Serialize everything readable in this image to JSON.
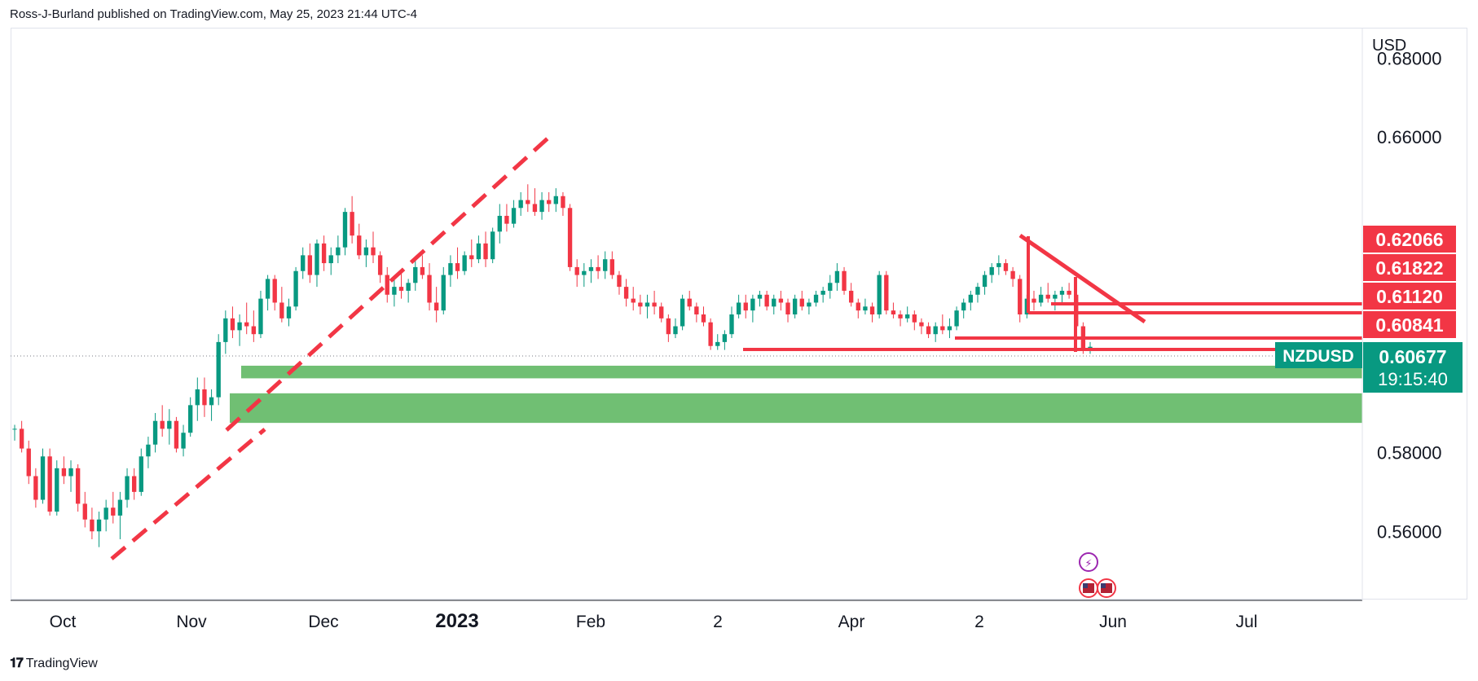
{
  "header": {
    "published_by": "Ross-J-Burland published on TradingView.com, May 25, 2023 21:44 UTC-4"
  },
  "branding": {
    "logo_icon": "tradingview-logo-icon",
    "label": "TradingView"
  },
  "chart_data": {
    "type": "candlestick",
    "symbol": "NZDUSD",
    "currency_label": "USD",
    "price_axis": {
      "range": [
        0.5425,
        0.6875
      ],
      "ticks": [
        "0.68000",
        "0.66000",
        "0.58000",
        "0.56000"
      ]
    },
    "time_axis": {
      "ticks": [
        {
          "label": "Oct",
          "bold": false
        },
        {
          "label": "Nov",
          "bold": false
        },
        {
          "label": "Dec",
          "bold": false
        },
        {
          "label": "2023",
          "bold": true
        },
        {
          "label": "Feb",
          "bold": false
        },
        {
          "label": "2",
          "bold": false
        },
        {
          "label": "Apr",
          "bold": false
        },
        {
          "label": "2",
          "bold": false
        },
        {
          "label": "Jun",
          "bold": false
        },
        {
          "label": "Jul",
          "bold": false
        }
      ]
    },
    "price_labels": [
      {
        "text": "0.62066",
        "value": 0.62066,
        "color": "#f23645"
      },
      {
        "text": "0.61822",
        "value": 0.61822,
        "color": "#f23645"
      },
      {
        "text": "0.61120",
        "value": 0.6112,
        "color": "#f23645"
      },
      {
        "text": "0.60841",
        "value": 0.60841,
        "color": "#f23645"
      }
    ],
    "last_price": {
      "text": "0.60677",
      "value": 0.60677,
      "color": "#089981",
      "symbol_tag": "NZDUSD",
      "countdown": "19:15:40"
    },
    "support_zones": [
      {
        "top": 0.602,
        "bottom": 0.5988,
        "color": "#4caf50"
      },
      {
        "top": 0.595,
        "bottom": 0.5875,
        "color": "#4caf50"
      }
    ],
    "colors": {
      "up": "#089981",
      "down": "#f23645",
      "zone": "#4caf50",
      "lines": "#f23645"
    },
    "candles": [
      [
        0.586,
        0.587,
        0.583,
        0.586
      ],
      [
        0.586,
        0.588,
        0.58,
        0.581
      ],
      [
        0.581,
        0.583,
        0.572,
        0.574
      ],
      [
        0.574,
        0.576,
        0.566,
        0.568
      ],
      [
        0.568,
        0.581,
        0.567,
        0.579
      ],
      [
        0.579,
        0.581,
        0.564,
        0.565
      ],
      [
        0.565,
        0.578,
        0.564,
        0.576
      ],
      [
        0.576,
        0.579,
        0.572,
        0.574
      ],
      [
        0.574,
        0.578,
        0.57,
        0.576
      ],
      [
        0.576,
        0.577,
        0.565,
        0.567
      ],
      [
        0.567,
        0.57,
        0.561,
        0.563
      ],
      [
        0.563,
        0.566,
        0.558,
        0.56
      ],
      [
        0.56,
        0.565,
        0.556,
        0.563
      ],
      [
        0.563,
        0.568,
        0.56,
        0.566
      ],
      [
        0.566,
        0.57,
        0.562,
        0.564
      ],
      [
        0.564,
        0.57,
        0.558,
        0.568
      ],
      [
        0.568,
        0.576,
        0.566,
        0.574
      ],
      [
        0.574,
        0.576,
        0.568,
        0.57
      ],
      [
        0.57,
        0.581,
        0.569,
        0.579
      ],
      [
        0.579,
        0.584,
        0.576,
        0.582
      ],
      [
        0.582,
        0.59,
        0.58,
        0.588
      ],
      [
        0.588,
        0.592,
        0.584,
        0.586
      ],
      [
        0.586,
        0.591,
        0.582,
        0.588
      ],
      [
        0.588,
        0.589,
        0.58,
        0.581
      ],
      [
        0.581,
        0.587,
        0.579,
        0.585
      ],
      [
        0.585,
        0.594,
        0.584,
        0.592
      ],
      [
        0.592,
        0.599,
        0.588,
        0.596
      ],
      [
        0.596,
        0.599,
        0.589,
        0.592
      ],
      [
        0.592,
        0.596,
        0.588,
        0.594
      ],
      [
        0.594,
        0.61,
        0.592,
        0.608
      ],
      [
        0.608,
        0.616,
        0.605,
        0.614
      ],
      [
        0.614,
        0.617,
        0.609,
        0.611
      ],
      [
        0.611,
        0.615,
        0.607,
        0.613
      ],
      [
        0.613,
        0.618,
        0.61,
        0.612
      ],
      [
        0.612,
        0.616,
        0.608,
        0.61
      ],
      [
        0.61,
        0.621,
        0.609,
        0.619
      ],
      [
        0.619,
        0.625,
        0.616,
        0.624
      ],
      [
        0.624,
        0.625,
        0.616,
        0.618
      ],
      [
        0.618,
        0.622,
        0.613,
        0.614
      ],
      [
        0.614,
        0.619,
        0.612,
        0.617
      ],
      [
        0.617,
        0.627,
        0.616,
        0.626
      ],
      [
        0.626,
        0.632,
        0.624,
        0.63
      ],
      [
        0.63,
        0.633,
        0.623,
        0.625
      ],
      [
        0.625,
        0.634,
        0.622,
        0.633
      ],
      [
        0.633,
        0.635,
        0.626,
        0.628
      ],
      [
        0.628,
        0.632,
        0.625,
        0.63
      ],
      [
        0.63,
        0.635,
        0.628,
        0.632
      ],
      [
        0.632,
        0.642,
        0.63,
        0.641
      ],
      [
        0.641,
        0.645,
        0.633,
        0.635
      ],
      [
        0.635,
        0.638,
        0.629,
        0.63
      ],
      [
        0.63,
        0.634,
        0.627,
        0.632
      ],
      [
        0.632,
        0.636,
        0.628,
        0.63
      ],
      [
        0.63,
        0.631,
        0.623,
        0.625
      ],
      [
        0.625,
        0.627,
        0.618,
        0.62
      ],
      [
        0.62,
        0.624,
        0.617,
        0.622
      ],
      [
        0.622,
        0.626,
        0.619,
        0.621
      ],
      [
        0.621,
        0.624,
        0.618,
        0.623
      ],
      [
        0.623,
        0.629,
        0.621,
        0.627
      ],
      [
        0.627,
        0.63,
        0.624,
        0.625
      ],
      [
        0.625,
        0.628,
        0.616,
        0.618
      ],
      [
        0.618,
        0.622,
        0.613,
        0.616
      ],
      [
        0.616,
        0.627,
        0.615,
        0.625
      ],
      [
        0.625,
        0.63,
        0.622,
        0.628
      ],
      [
        0.628,
        0.632,
        0.624,
        0.626
      ],
      [
        0.626,
        0.631,
        0.625,
        0.63
      ],
      [
        0.63,
        0.634,
        0.627,
        0.629
      ],
      [
        0.629,
        0.635,
        0.628,
        0.633
      ],
      [
        0.633,
        0.636,
        0.627,
        0.629
      ],
      [
        0.629,
        0.637,
        0.628,
        0.636
      ],
      [
        0.636,
        0.643,
        0.633,
        0.64
      ],
      [
        0.64,
        0.643,
        0.636,
        0.638
      ],
      [
        0.638,
        0.644,
        0.637,
        0.642
      ],
      [
        0.642,
        0.646,
        0.64,
        0.644
      ],
      [
        0.644,
        0.648,
        0.641,
        0.643
      ],
      [
        0.643,
        0.647,
        0.64,
        0.641
      ],
      [
        0.641,
        0.646,
        0.639,
        0.644
      ],
      [
        0.644,
        0.646,
        0.641,
        0.643
      ],
      [
        0.643,
        0.647,
        0.641,
        0.645
      ],
      [
        0.645,
        0.646,
        0.64,
        0.642
      ],
      [
        0.642,
        0.643,
        0.626,
        0.627
      ],
      [
        0.627,
        0.629,
        0.622,
        0.625
      ],
      [
        0.625,
        0.628,
        0.622,
        0.626
      ],
      [
        0.626,
        0.629,
        0.623,
        0.627
      ],
      [
        0.627,
        0.63,
        0.624,
        0.626
      ],
      [
        0.626,
        0.631,
        0.624,
        0.629
      ],
      [
        0.629,
        0.631,
        0.624,
        0.625
      ],
      [
        0.625,
        0.626,
        0.62,
        0.622
      ],
      [
        0.622,
        0.624,
        0.617,
        0.619
      ],
      [
        0.619,
        0.622,
        0.616,
        0.618
      ],
      [
        0.618,
        0.62,
        0.615,
        0.617
      ],
      [
        0.617,
        0.62,
        0.614,
        0.618
      ],
      [
        0.618,
        0.621,
        0.615,
        0.617
      ],
      [
        0.617,
        0.618,
        0.613,
        0.614
      ],
      [
        0.614,
        0.615,
        0.608,
        0.61
      ],
      [
        0.61,
        0.614,
        0.609,
        0.612
      ],
      [
        0.612,
        0.62,
        0.611,
        0.619
      ],
      [
        0.619,
        0.621,
        0.616,
        0.617
      ],
      [
        0.617,
        0.618,
        0.613,
        0.615
      ],
      [
        0.615,
        0.617,
        0.612,
        0.613
      ],
      [
        0.613,
        0.614,
        0.606,
        0.607
      ],
      [
        0.607,
        0.61,
        0.606,
        0.608
      ],
      [
        0.608,
        0.611,
        0.606,
        0.61
      ],
      [
        0.61,
        0.617,
        0.609,
        0.615
      ],
      [
        0.615,
        0.62,
        0.614,
        0.618
      ],
      [
        0.618,
        0.62,
        0.614,
        0.616
      ],
      [
        0.616,
        0.62,
        0.613,
        0.619
      ],
      [
        0.619,
        0.621,
        0.617,
        0.62
      ],
      [
        0.62,
        0.621,
        0.616,
        0.617
      ],
      [
        0.617,
        0.62,
        0.615,
        0.619
      ],
      [
        0.619,
        0.621,
        0.616,
        0.618
      ],
      [
        0.618,
        0.619,
        0.613,
        0.615
      ],
      [
        0.615,
        0.62,
        0.614,
        0.619
      ],
      [
        0.619,
        0.621,
        0.616,
        0.617
      ],
      [
        0.617,
        0.619,
        0.615,
        0.618
      ],
      [
        0.618,
        0.621,
        0.617,
        0.62
      ],
      [
        0.62,
        0.622,
        0.618,
        0.621
      ],
      [
        0.621,
        0.625,
        0.619,
        0.623
      ],
      [
        0.623,
        0.628,
        0.621,
        0.626
      ],
      [
        0.626,
        0.627,
        0.62,
        0.621
      ],
      [
        0.621,
        0.623,
        0.617,
        0.618
      ],
      [
        0.618,
        0.619,
        0.614,
        0.616
      ],
      [
        0.616,
        0.619,
        0.615,
        0.617
      ],
      [
        0.617,
        0.618,
        0.613,
        0.615
      ],
      [
        0.615,
        0.626,
        0.614,
        0.625
      ],
      [
        0.625,
        0.626,
        0.615,
        0.616
      ],
      [
        0.616,
        0.618,
        0.614,
        0.615
      ],
      [
        0.615,
        0.616,
        0.612,
        0.614
      ],
      [
        0.614,
        0.617,
        0.613,
        0.615
      ],
      [
        0.615,
        0.616,
        0.611,
        0.613
      ],
      [
        0.613,
        0.614,
        0.61,
        0.612
      ],
      [
        0.612,
        0.613,
        0.609,
        0.61
      ],
      [
        0.61,
        0.613,
        0.608,
        0.612
      ],
      [
        0.612,
        0.615,
        0.61,
        0.611
      ],
      [
        0.611,
        0.614,
        0.609,
        0.612
      ],
      [
        0.612,
        0.617,
        0.611,
        0.616
      ],
      [
        0.616,
        0.619,
        0.614,
        0.618
      ],
      [
        0.618,
        0.621,
        0.616,
        0.62
      ],
      [
        0.62,
        0.623,
        0.618,
        0.622
      ],
      [
        0.622,
        0.626,
        0.62,
        0.625
      ],
      [
        0.625,
        0.628,
        0.623,
        0.627
      ],
      [
        0.627,
        0.63,
        0.625,
        0.628
      ],
      [
        0.628,
        0.629,
        0.625,
        0.626
      ],
      [
        0.626,
        0.627,
        0.622,
        0.624
      ],
      [
        0.624,
        0.625,
        0.613,
        0.615
      ],
      [
        0.615,
        0.62,
        0.614,
        0.619
      ],
      [
        0.619,
        0.621,
        0.616,
        0.618
      ],
      [
        0.618,
        0.622,
        0.617,
        0.62
      ],
      [
        0.62,
        0.623,
        0.618,
        0.619
      ],
      [
        0.619,
        0.621,
        0.616,
        0.62
      ],
      [
        0.62,
        0.622,
        0.618,
        0.621
      ],
      [
        0.621,
        0.623,
        0.619,
        0.62
      ],
      [
        0.62,
        0.621,
        0.611,
        0.612
      ],
      [
        0.612,
        0.613,
        0.605,
        0.606
      ],
      [
        0.606,
        0.608,
        0.605,
        0.6068
      ]
    ],
    "drawings": [
      {
        "kind": "dashed-trendline",
        "color": "#f23645"
      },
      {
        "kind": "dashed-trendline",
        "color": "#f23645"
      },
      {
        "kind": "trendline",
        "color": "#f23645"
      },
      {
        "kind": "horizontal",
        "color": "#f23645"
      }
    ]
  }
}
